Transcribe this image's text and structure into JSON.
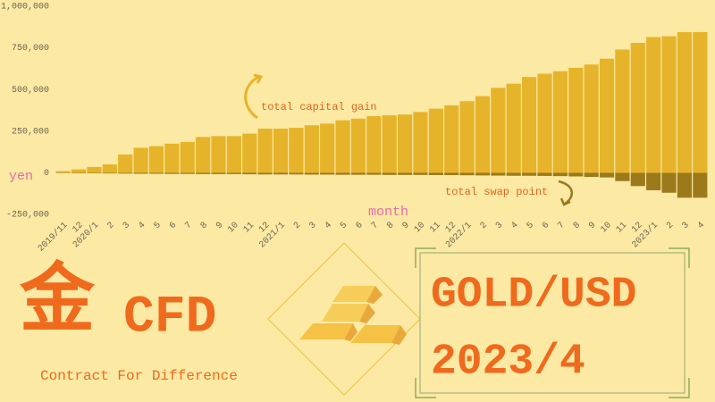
{
  "chart_data": {
    "type": "bar",
    "x_label": "month",
    "y_label": "yen",
    "categories": [
      "2019/11",
      "12",
      "2020/1",
      "2",
      "3",
      "4",
      "5",
      "6",
      "7",
      "8",
      "9",
      "10",
      "11",
      "12",
      "2021/1",
      "2",
      "3",
      "4",
      "5",
      "6",
      "7",
      "8",
      "9",
      "10",
      "11",
      "12",
      "2022/1",
      "2",
      "3",
      "4",
      "5",
      "6",
      "7",
      "8",
      "9",
      "10",
      "11",
      "12",
      "2023/1",
      "2",
      "3",
      "4"
    ],
    "series": [
      {
        "name": "total capital gain",
        "color": "#e6b42a",
        "values": [
          10000,
          20000,
          35000,
          50000,
          110000,
          150000,
          160000,
          175000,
          185000,
          215000,
          220000,
          220000,
          235000,
          265000,
          265000,
          270000,
          285000,
          295000,
          315000,
          325000,
          340000,
          345000,
          350000,
          365000,
          385000,
          405000,
          430000,
          460000,
          510000,
          535000,
          575000,
          595000,
          610000,
          630000,
          650000,
          685000,
          740000,
          780000,
          815000,
          820000,
          845000,
          845000
        ]
      },
      {
        "name": "total swap point",
        "color": "#9c7a1c",
        "values": [
          -2000,
          -3000,
          -3000,
          -4000,
          -5000,
          -6000,
          -6000,
          -7000,
          -7000,
          -8000,
          -8000,
          -8000,
          -9000,
          -10000,
          -10000,
          -10000,
          -11000,
          -11000,
          -12000,
          -12000,
          -12000,
          -13000,
          -13000,
          -13000,
          -14000,
          -14000,
          -15000,
          -16000,
          -17000,
          -18000,
          -18000,
          -19000,
          -20000,
          -22000,
          -25000,
          -28000,
          -50000,
          -80000,
          -105000,
          -120000,
          -150000,
          -150000
        ]
      }
    ],
    "ylim": [
      -250000,
      1000000
    ],
    "yticks": [
      {
        "value": -250000,
        "label": "-250,000"
      },
      0,
      {
        "value": 250000,
        "label": "250,000"
      },
      {
        "value": 500000,
        "label": "500,000"
      },
      {
        "value": 750000,
        "label": "750,000"
      },
      {
        "value": 1000000,
        "label": "1,000,000"
      }
    ],
    "grid": false
  },
  "banner": {
    "kanji": "金",
    "name": "CFD",
    "subtitle": "Contract For Difference",
    "pair": "GOLD/USD",
    "date": "2023/4"
  }
}
